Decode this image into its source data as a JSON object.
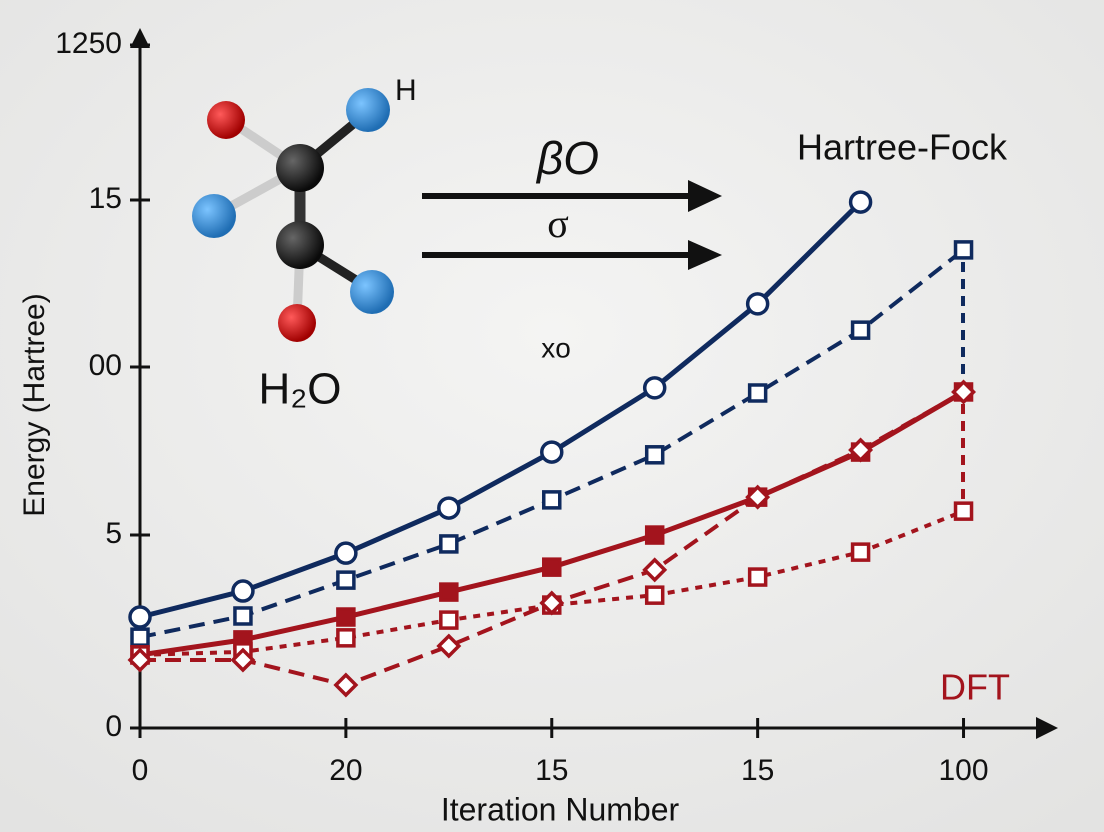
{
  "chart_data": {
    "type": "line",
    "x_label": "Iteration Number",
    "y_label": "Energy (Hartree)",
    "annotations": [
      "H",
      "H₂O",
      "βO",
      "σ",
      "xo"
    ],
    "x": [
      0,
      0.5,
      1,
      1.5,
      2,
      2.5,
      3,
      3.5,
      4
    ],
    "xlim": [
      0,
      4.42
    ],
    "xticks": [
      0,
      {
        "value": 1,
        "label": "20"
      },
      {
        "value": 2,
        "label": "15"
      },
      {
        "value": 3,
        "label": "15"
      },
      {
        "value": 4,
        "label": "100"
      }
    ],
    "ylim": [
      0,
      20
    ],
    "yticks": [
      0,
      {
        "value": 5.65,
        "label": "5"
      },
      {
        "value": 10.57,
        "label": "00"
      },
      {
        "value": 15.46,
        "label": "15"
      },
      {
        "value": 20,
        "label": "1250"
      }
    ],
    "series": [
      {
        "name": "Hartree-Fock",
        "color": "#0f2a5e",
        "line_style": "solid",
        "marker": "circle",
        "filled": false,
        "values": [
          3.25,
          4.01,
          5.12,
          6.44,
          8.08,
          9.96,
          12.42,
          15.4,
          null
        ]
      },
      {
        "color": "#0f2a5e",
        "line_style": "dashed",
        "marker": "square",
        "filled": false,
        "values": [
          2.66,
          3.28,
          4.33,
          5.39,
          6.68,
          8.0,
          9.81,
          11.65,
          14.0
        ]
      },
      {
        "name": "DFT",
        "color": "#a3141d",
        "line_style": "solid",
        "marker": "square",
        "filled": true,
        "values": [
          2.14,
          2.58,
          3.25,
          3.98,
          4.71,
          5.65,
          6.76,
          8.08,
          9.84
        ]
      },
      {
        "color": "#a3141d",
        "line_style": "dotted",
        "marker": "square",
        "filled": false,
        "values": [
          2.14,
          2.23,
          2.64,
          3.16,
          3.6,
          3.89,
          4.42,
          5.15,
          6.35
        ]
      },
      {
        "color": "#a3141d",
        "line_style": "dashed",
        "marker": "diamond",
        "filled": false,
        "values": [
          1.99,
          1.99,
          1.26,
          2.4,
          3.66,
          4.63,
          6.76,
          8.14,
          9.84
        ]
      }
    ]
  }
}
